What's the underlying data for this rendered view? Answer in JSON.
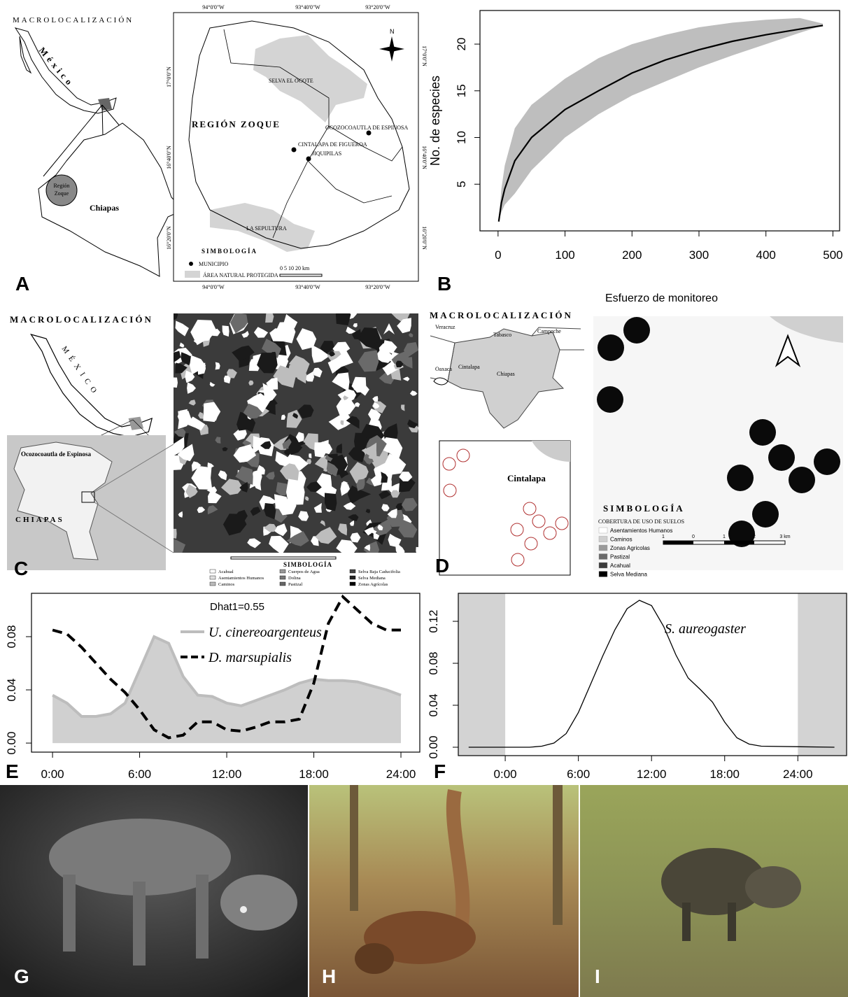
{
  "chart_data": [
    {
      "type": "line",
      "ylabel": "No. de especies",
      "x": [
        1,
        5,
        10,
        25,
        50,
        100,
        150,
        200,
        250,
        300,
        350,
        400,
        450,
        485
      ],
      "series": [
        {
          "color": "#000000",
          "band_color": "#bebebe",
          "values": [
            1,
            3,
            4.5,
            7.5,
            10,
            13,
            15,
            16.9,
            18.3,
            19.4,
            20.3,
            21,
            21.6,
            22
          ],
          "lower": [
            1,
            2,
            2.8,
            4,
            6.5,
            10,
            12.5,
            14.5,
            16,
            17.5,
            18.8,
            20,
            21.2,
            22
          ],
          "upper": [
            1,
            4.5,
            7,
            11,
            13.5,
            16.3,
            18.5,
            20,
            21,
            21.8,
            22.3,
            22.6,
            22.8,
            22.2
          ]
        }
      ],
      "xlim": [
        -27,
        510
      ],
      "ylim": [
        0,
        23.6
      ],
      "xticks": [
        0,
        100,
        200,
        300,
        400,
        500
      ],
      "yticks": [
        5,
        10,
        15,
        20
      ]
    },
    {
      "type": "line",
      "annotation": "Dhat1=0.55",
      "x": [
        0,
        1,
        2,
        3,
        4,
        5,
        6,
        7,
        8,
        9,
        10,
        11,
        12,
        13,
        14,
        15,
        16,
        17,
        18,
        19,
        20,
        21,
        22,
        23,
        24
      ],
      "series": [
        {
          "name": "U. cinereoargenteus",
          "color": "#bdbdbd",
          "fill_color": "#d0d0d0",
          "style": "area",
          "values": [
            0.036,
            0.03,
            0.02,
            0.02,
            0.022,
            0.03,
            0.055,
            0.08,
            0.075,
            0.05,
            0.036,
            0.035,
            0.03,
            0.028,
            0.032,
            0.036,
            0.04,
            0.045,
            0.048,
            0.047,
            0.047,
            0.046,
            0.043,
            0.04,
            0.036
          ]
        },
        {
          "name": "D. marsupialis",
          "color": "#000000",
          "style": "dashed",
          "values": [
            0.085,
            0.082,
            0.072,
            0.06,
            0.048,
            0.038,
            0.025,
            0.01,
            0.004,
            0.006,
            0.016,
            0.016,
            0.01,
            0.009,
            0.012,
            0.016,
            0.016,
            0.018,
            0.045,
            0.09,
            0.11,
            0.1,
            0.09,
            0.085,
            0.085
          ]
        }
      ],
      "xlim": [
        -1.45,
        25.3
      ],
      "ylim": [
        -0.0068,
        0.1126
      ],
      "xticks": [
        {
          "value": 0,
          "label": "0:00"
        },
        {
          "value": 6,
          "label": "6:00"
        },
        {
          "value": 12,
          "label": "12:00"
        },
        {
          "value": 18,
          "label": "18:00"
        },
        {
          "value": 24,
          "label": "24:00"
        }
      ],
      "yticks": [
        {
          "value": 0,
          "label": "0.00"
        },
        {
          "value": 0.04,
          "label": "0.04"
        },
        {
          "value": 0.08,
          "label": "0.08"
        }
      ]
    },
    {
      "type": "line",
      "shade_outside_ticks": true,
      "x": [
        -3,
        2,
        3,
        4,
        5,
        6,
        7,
        8,
        9,
        10,
        11,
        12,
        13,
        14,
        15,
        16,
        17,
        18,
        19,
        20,
        21,
        27
      ],
      "series": [
        {
          "name": "S. aureogaster",
          "color": "#000000",
          "style": "solid",
          "values": [
            0,
            0,
            0.001,
            0.004,
            0.013,
            0.033,
            0.06,
            0.087,
            0.112,
            0.132,
            0.14,
            0.135,
            0.115,
            0.088,
            0.066,
            0.055,
            0.043,
            0.024,
            0.009,
            0.003,
            0.001,
            0
          ]
        }
      ],
      "xlim": [
        -3.85,
        28
      ],
      "ylim": [
        -0.008,
        0.1467
      ],
      "xticks": [
        {
          "value": 0,
          "label": "0:00"
        },
        {
          "value": 6,
          "label": "6:00"
        },
        {
          "value": 12,
          "label": "12:00"
        },
        {
          "value": 18,
          "label": "18:00"
        },
        {
          "value": 24,
          "label": "24:00"
        }
      ],
      "yticks": [
        {
          "value": 0,
          "label": "0.00"
        },
        {
          "value": 0.04,
          "label": "0.04"
        },
        {
          "value": 0.08,
          "label": "0.08"
        },
        {
          "value": 0.12,
          "label": "0.12"
        }
      ]
    }
  ],
  "panel_labels": [
    "A",
    "B",
    "C",
    "D",
    "E",
    "F",
    "G",
    "H",
    "I"
  ],
  "map_a": {
    "heading": "MACROLOCALIZACIÓN",
    "country": "México",
    "region_small": [
      "Región",
      "Zoque"
    ],
    "state": "Chiapas",
    "region": "REGIÓN ZOQUE",
    "north": "N",
    "places": [
      "SELVA EL OCOTE",
      "OCOZOCOAUTLA DE ESPINOSA",
      "CINTALAPA DE FIGUEROA",
      "JIQUIPILAS",
      "LA SEPULTURA"
    ],
    "legend_title": "SIMBOLOGÍA",
    "legend": [
      "MUNICIPIO",
      "ÁREA NATURAL PROTEGIDA"
    ],
    "scale": "0 5 10 20 km",
    "lon": [
      "94°0'0\"W",
      "93°40'0\"W",
      "93°20'0\"W"
    ],
    "lat": [
      "17°0'0\"N",
      "16°40'0\"N",
      "16°20'0\"N"
    ]
  },
  "map_c": {
    "heading": "MACROLOCALIZACIÓN",
    "country": "MÉXICO",
    "place": "Ocozocoautla de Espinosa",
    "state": "CHIAPAS",
    "legend_title": "SIMBOLOGÍA",
    "legend": [
      "Acahual",
      "Asentamientos Humanos",
      "Caminos",
      "Cuerpos de Agua",
      "Dolina",
      "Pastizal",
      "Selva Baja Caducifolia",
      "Selva Mediana",
      "Zonas Agrícolas"
    ]
  },
  "map_d": {
    "heading": "MACROLOCALIZACIÓN",
    "states": [
      "Veracruz",
      "Tabasco",
      "Campeche",
      "Oaxaca",
      "Cintalapa",
      "Chiapas"
    ],
    "place": "Cintalapa",
    "title": "Esfuerzo de monitoreo",
    "legend_title": "SIMBOLOGÍA",
    "legend_subtitle": "COBERTURA DE USO DE SUELOS",
    "legend": [
      "Asentamientos Humanos",
      "Caminos",
      "Zonas Agricolas",
      "Pastizal",
      "Acahual",
      "Selva Mediana"
    ],
    "scale": [
      "1",
      "0",
      "1",
      "2",
      "3 km"
    ]
  }
}
